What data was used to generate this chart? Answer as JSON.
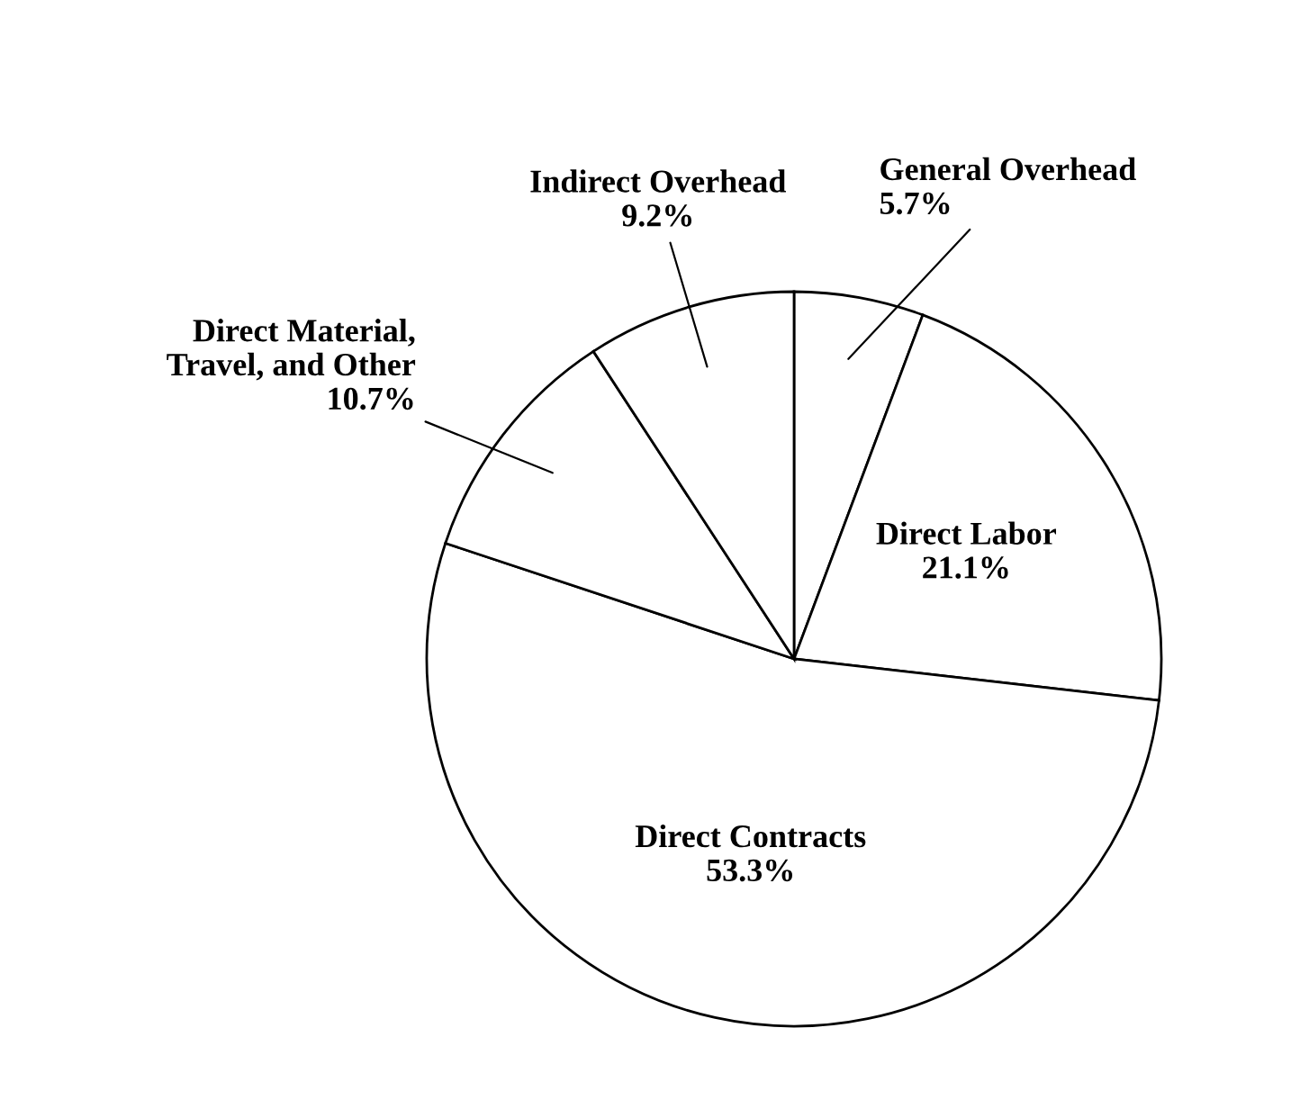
{
  "chart_data": {
    "type": "pie",
    "categories": [
      "General Overhead",
      "Direct Labor",
      "Direct Contracts",
      "Direct Material,\nTravel, and Other",
      "Indirect Overhead"
    ],
    "values": [
      5.7,
      21.1,
      53.3,
      10.7,
      9.2
    ],
    "colors": [
      "#ffffff",
      "#ffffff",
      "#ffffff",
      "#ffffff",
      "#ffffff"
    ],
    "value_labels": [
      "5.7%",
      "21.1%",
      "53.3%",
      "10.7%",
      "9.2%"
    ]
  }
}
